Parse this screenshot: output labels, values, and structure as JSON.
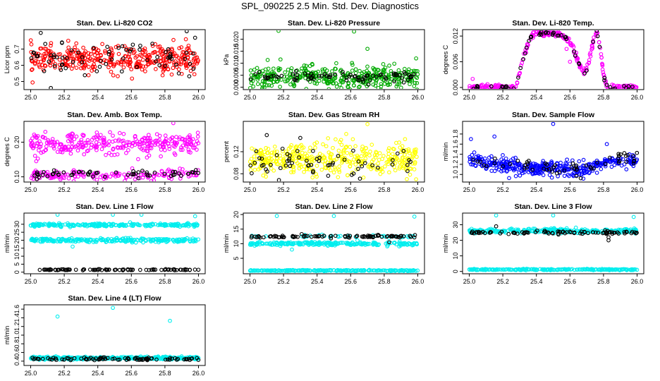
{
  "page": {
    "title": "SPL_090225  2.5 Min. Std. Dev. Diagnostics"
  },
  "chart_data": [
    {
      "type": "scatter",
      "title": "Stan. Dev. Li-820 CO2",
      "ylabel": "Licor ppm",
      "xlim": [
        25.0,
        26.0
      ],
      "ylim": [
        0.45,
        0.82
      ],
      "xticks": [
        "25.0",
        "25.2",
        "25.4",
        "25.6",
        "25.8",
        "26.0"
      ],
      "yticks": [
        {
          "value": 0.5,
          "label": "0.5"
        },
        {
          "value": 0.6,
          "label": "0.6"
        },
        {
          "value": 0.7,
          "label": "0.7"
        }
      ],
      "series": [
        {
          "color": "#ff0000",
          "marker_fill": "#ff0000",
          "bands": [
            {
              "center": 0.64,
              "spread": 0.07,
              "count": 380
            }
          ],
          "points": []
        },
        {
          "color": "#000000",
          "bands": [
            {
              "center": 0.64,
              "spread": 0.07,
              "count": 70
            }
          ],
          "points": [
            [
              25.06,
              0.8
            ],
            [
              25.93,
              0.81
            ],
            [
              25.98,
              0.77
            ],
            [
              25.12,
              0.46
            ]
          ]
        }
      ]
    },
    {
      "type": "scatter",
      "title": "Stan. Dev. Li-820 Pressure",
      "ylabel": "kPa",
      "xlim": [
        25.0,
        26.0
      ],
      "ylim": [
        -0.001,
        0.024
      ],
      "xticks": [
        "25.0",
        "25.2",
        "25.4",
        "25.6",
        "25.8",
        "26.0"
      ],
      "yticks": [
        {
          "value": 0.0,
          "label": "0.000"
        },
        {
          "value": 0.005,
          "label": "0.005"
        },
        {
          "value": 0.01,
          "label": "0.010"
        },
        {
          "value": 0.015,
          "label": "0.015"
        },
        {
          "value": 0.02,
          "label": "0.020"
        }
      ],
      "series": [
        {
          "color": "#00aa00",
          "bands": [
            {
              "center": 0.004,
              "spread": 0.004,
              "count": 380
            }
          ],
          "points": [
            [
              25.17,
              0.0235
            ],
            [
              25.62,
              0.0232
            ],
            [
              25.7,
              0.016
            ],
            [
              25.99,
              0.012
            ]
          ]
        },
        {
          "color": "#000000",
          "bands": [
            {
              "center": 0.0045,
              "spread": 0.002,
              "count": 80
            }
          ],
          "points": []
        }
      ]
    },
    {
      "type": "scatter",
      "title": "Stan. Dev. Li-820 Temp.",
      "ylabel": "degrees C",
      "xlim": [
        25.0,
        26.0
      ],
      "ylim": [
        -0.0005,
        0.0135
      ],
      "xticks": [
        "25.0",
        "25.2",
        "25.4",
        "25.6",
        "25.8",
        "26.0"
      ],
      "yticks": [
        {
          "value": 0.0,
          "label": "0.000"
        },
        {
          "value": 0.006,
          "label": "0.006"
        },
        {
          "value": 0.012,
          "label": "0.012"
        }
      ],
      "series": [
        {
          "color": "#ff00ff",
          "curve": [
            [
              25.0,
              0.0
            ],
            [
              25.28,
              0.0
            ],
            [
              25.29,
              0.002
            ],
            [
              25.31,
              0.005
            ],
            [
              25.33,
              0.008
            ],
            [
              25.35,
              0.01
            ],
            [
              25.37,
              0.0118
            ],
            [
              25.4,
              0.0125
            ],
            [
              25.45,
              0.0126
            ],
            [
              25.5,
              0.0127
            ],
            [
              25.55,
              0.0122
            ],
            [
              25.6,
              0.0105
            ],
            [
              25.63,
              0.008
            ],
            [
              25.66,
              0.005
            ],
            [
              25.68,
              0.0035
            ],
            [
              25.7,
              0.004
            ],
            [
              25.72,
              0.0075
            ],
            [
              25.74,
              0.011
            ],
            [
              25.76,
              0.0128
            ],
            [
              25.78,
              0.009
            ],
            [
              25.8,
              0.003
            ],
            [
              25.82,
              0.0
            ],
            [
              26.0,
              0.0
            ]
          ],
          "curve_count": 300,
          "curve_spread": 0.0006,
          "points": [
            [
              25.02,
              0.002
            ],
            [
              25.6,
              0.006
            ],
            [
              25.58,
              0.009
            ]
          ]
        },
        {
          "color": "#000000",
          "curve": [
            [
              25.0,
              0.0
            ],
            [
              25.28,
              0.0
            ],
            [
              25.29,
              0.002
            ],
            [
              25.31,
              0.005
            ],
            [
              25.33,
              0.008
            ],
            [
              25.35,
              0.01
            ],
            [
              25.37,
              0.0118
            ],
            [
              25.4,
              0.0125
            ],
            [
              25.45,
              0.0126
            ],
            [
              25.5,
              0.0127
            ],
            [
              25.55,
              0.0122
            ],
            [
              25.6,
              0.0105
            ],
            [
              25.63,
              0.008
            ],
            [
              25.66,
              0.005
            ],
            [
              25.68,
              0.0035
            ],
            [
              25.7,
              0.004
            ],
            [
              25.72,
              0.0075
            ],
            [
              25.74,
              0.011
            ],
            [
              25.76,
              0.0128
            ],
            [
              25.78,
              0.009
            ],
            [
              25.8,
              0.003
            ],
            [
              25.82,
              0.0
            ],
            [
              26.0,
              0.0
            ]
          ],
          "curve_count": 60,
          "curve_spread": 0.0004,
          "points": []
        }
      ]
    },
    {
      "type": "scatter",
      "title": "Stan. Dev. Amb. Box Temp.",
      "ylabel": "degrees C",
      "xlim": [
        25.0,
        26.0
      ],
      "ylim": [
        0.085,
        0.26
      ],
      "xticks": [
        "25.0",
        "25.2",
        "25.4",
        "25.6",
        "25.8",
        "26.0"
      ],
      "yticks": [
        {
          "value": 0.1,
          "label": "0.10"
        },
        {
          "value": 0.2,
          "label": "0.20"
        }
      ],
      "series": [
        {
          "color": "#ff00ff",
          "bands": [
            {
              "center": 0.195,
              "spread": 0.025,
              "count": 300
            },
            {
              "center": 0.105,
              "spread": 0.012,
              "count": 160
            }
          ],
          "points": [
            [
              25.85,
              0.255
            ]
          ]
        },
        {
          "color": "#000000",
          "bands": [
            {
              "center": 0.108,
              "spread": 0.01,
              "count": 60
            }
          ],
          "points": []
        }
      ]
    },
    {
      "type": "scatter",
      "title": "Stan. Dev. Gas Stream RH",
      "ylabel": "percent",
      "xlim": [
        25.0,
        26.0
      ],
      "ylim": [
        0.065,
        0.175
      ],
      "xticks": [
        "25.0",
        "25.2",
        "25.4",
        "25.6",
        "25.8",
        "26.0"
      ],
      "yticks": [
        {
          "value": 0.08,
          "label": "0.08"
        },
        {
          "value": 0.12,
          "label": "0.12"
        }
      ],
      "series": [
        {
          "color": "#ffff00",
          "bands": [
            {
              "center": 0.105,
              "spread": 0.025,
              "count": 400
            }
          ],
          "points": [
            [
              25.7,
              0.17
            ],
            [
              25.99,
              0.07
            ]
          ]
        },
        {
          "color": "#000000",
          "bands": [
            {
              "center": 0.1,
              "spread": 0.02,
              "count": 60
            }
          ],
          "points": [
            [
              25.1,
              0.15
            ],
            [
              25.3,
              0.145
            ]
          ]
        }
      ]
    },
    {
      "type": "scatter",
      "title": "Stan. Dev. Sample Flow",
      "ylabel": "ml/min",
      "xlim": [
        25.0,
        26.0
      ],
      "ylim": [
        0.85,
        2.05
      ],
      "xticks": [
        "25.0",
        "25.2",
        "25.4",
        "25.6",
        "25.8",
        "26.0"
      ],
      "yticks": [
        {
          "value": 1.0,
          "label": "1.0"
        },
        {
          "value": 1.2,
          "label": "1.2"
        },
        {
          "value": 1.4,
          "label": "1.4"
        },
        {
          "value": 1.6,
          "label": "1.6"
        },
        {
          "value": 1.8,
          "label": "1.8"
        }
      ],
      "series": [
        {
          "color": "#0000ff",
          "curve": [
            [
              25.0,
              1.35
            ],
            [
              25.1,
              1.22
            ],
            [
              25.3,
              1.15
            ],
            [
              25.5,
              1.12
            ],
            [
              25.7,
              1.08
            ],
            [
              25.8,
              1.25
            ],
            [
              25.9,
              1.3
            ],
            [
              26.0,
              1.28
            ]
          ],
          "curve_count": 380,
          "curve_spread": 0.12,
          "points": [
            [
              25.5,
              2.0
            ],
            [
              25.15,
              1.75
            ],
            [
              25.01,
              1.7
            ],
            [
              25.82,
              1.6
            ]
          ]
        },
        {
          "color": "#000000",
          "curve": [
            [
              25.0,
              1.3
            ],
            [
              25.3,
              1.17
            ],
            [
              25.7,
              1.1
            ],
            [
              25.85,
              1.4
            ],
            [
              26.0,
              1.3
            ]
          ],
          "curve_count": 60,
          "curve_spread": 0.1,
          "points": []
        }
      ]
    },
    {
      "type": "scatter",
      "title": "Stan. Dev. Line 1 Flow",
      "ylabel": "ml/min",
      "xlim": [
        25.0,
        26.0
      ],
      "ylim": [
        -1.0,
        37.0
      ],
      "xticks": [
        "25.0",
        "25.2",
        "25.4",
        "25.6",
        "25.8",
        "26.0"
      ],
      "yticks": [
        {
          "value": 0,
          "label": "0"
        },
        {
          "value": 5,
          "label": "5"
        },
        {
          "value": 10,
          "label": "10"
        },
        {
          "value": 15,
          "label": "15"
        },
        {
          "value": 20,
          "label": "20"
        },
        {
          "value": 25,
          "label": "25"
        },
        {
          "value": 30,
          "label": "30"
        }
      ],
      "series": [
        {
          "color": "#00eeee",
          "bands": [
            {
              "center": 29.5,
              "spread": 0.8,
              "count": 240
            },
            {
              "center": 20.0,
              "spread": 1.0,
              "count": 240
            }
          ],
          "points": [
            [
              25.16,
              36
            ],
            [
              25.49,
              36
            ],
            [
              25.66,
              36
            ],
            [
              25.98,
              35
            ],
            [
              25.25,
              16
            ]
          ]
        },
        {
          "color": "#000000",
          "bands": [
            {
              "center": 1.5,
              "spread": 0.3,
              "count": 90
            }
          ],
          "points": []
        }
      ]
    },
    {
      "type": "scatter",
      "title": "Stan. Dev. Line 2 Flow",
      "ylabel": "ml/min",
      "xlim": [
        25.0,
        26.0
      ],
      "ylim": [
        -0.3,
        20.5
      ],
      "xticks": [
        "25.0",
        "25.2",
        "25.4",
        "25.6",
        "25.8",
        "26.0"
      ],
      "yticks": [
        {
          "value": 5,
          "label": "5"
        },
        {
          "value": 10,
          "label": "10"
        },
        {
          "value": 15,
          "label": "15"
        },
        {
          "value": 20,
          "label": "20"
        }
      ],
      "series": [
        {
          "color": "#00eeee",
          "bands": [
            {
              "center": 10.0,
              "spread": 0.5,
              "count": 240
            },
            {
              "center": 0.8,
              "spread": 0.15,
              "count": 240
            },
            {
              "center": 12.5,
              "spread": 0.4,
              "count": 40
            }
          ],
          "points": [
            [
              25.16,
              19.5
            ],
            [
              25.5,
              19.5
            ],
            [
              25.98,
              19.3
            ],
            [
              25.25,
              8
            ]
          ]
        },
        {
          "color": "#000000",
          "bands": [
            {
              "center": 12.5,
              "spread": 0.4,
              "count": 90
            }
          ],
          "points": [
            [
              25.83,
              10.5
            ]
          ]
        }
      ]
    },
    {
      "type": "scatter",
      "title": "Stan. Dev. Line 3 Flow",
      "ylabel": "ml/min",
      "xlim": [
        25.0,
        26.0
      ],
      "ylim": [
        -1.5,
        37.5
      ],
      "xticks": [
        "25.0",
        "25.2",
        "25.4",
        "25.6",
        "25.8",
        "26.0"
      ],
      "yticks": [
        {
          "value": 0,
          "label": "0"
        },
        {
          "value": 10,
          "label": "10"
        },
        {
          "value": 20,
          "label": "20"
        },
        {
          "value": 30,
          "label": "30"
        }
      ],
      "series": [
        {
          "color": "#00eeee",
          "bands": [
            {
              "center": 26.0,
              "spread": 1.2,
              "count": 300
            },
            {
              "center": 1.2,
              "spread": 0.3,
              "count": 240
            }
          ],
          "points": [
            [
              25.16,
              36
            ],
            [
              25.5,
              36
            ],
            [
              25.98,
              35
            ]
          ]
        },
        {
          "color": "#000000",
          "bands": [
            {
              "center": 25.0,
              "spread": 0.8,
              "count": 90
            }
          ],
          "points": [
            [
              25.83,
              20
            ],
            [
              25.83,
              22
            ],
            [
              25.16,
              29
            ]
          ]
        }
      ]
    },
    {
      "type": "scatter",
      "title": "Stan. Dev. Line 4 (LT) Flow",
      "ylabel": "ml/min",
      "xlim": [
        25.0,
        26.0
      ],
      "ylim": [
        0.3,
        1.7
      ],
      "xticks": [
        "25.0",
        "25.2",
        "25.4",
        "25.6",
        "25.8",
        "26.0"
      ],
      "yticks": [
        {
          "value": 0.4,
          "label": "0.4"
        },
        {
          "value": 0.6,
          "label": "0.6"
        },
        {
          "value": 0.8,
          "label": "0.8"
        },
        {
          "value": 1.0,
          "label": "1.0"
        },
        {
          "value": 1.2,
          "label": "1.2"
        },
        {
          "value": 1.4,
          "label": "1.4"
        },
        {
          "value": 1.6,
          "label": "1.6"
        }
      ],
      "series": [
        {
          "color": "#00eeee",
          "bands": [
            {
              "center": 0.47,
              "spread": 0.025,
              "count": 400
            }
          ],
          "points": [
            [
              25.16,
              1.43
            ],
            [
              25.49,
              1.63
            ],
            [
              25.83,
              1.33
            ]
          ]
        },
        {
          "color": "#000000",
          "bands": [
            {
              "center": 0.45,
              "spread": 0.03,
              "count": 90
            }
          ],
          "points": []
        }
      ]
    }
  ]
}
